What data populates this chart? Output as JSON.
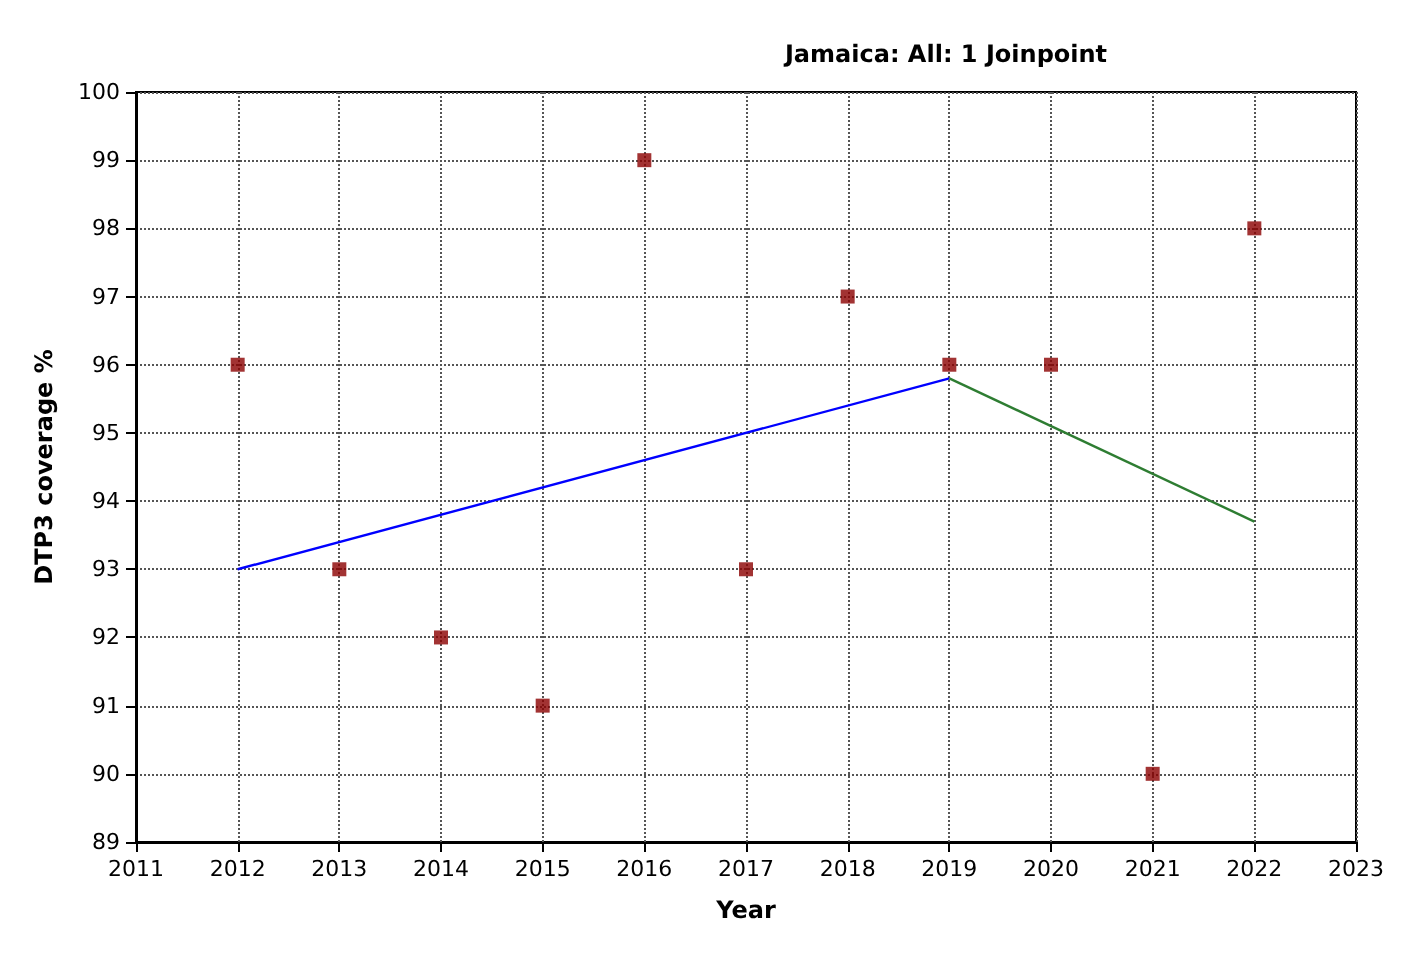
{
  "chart_data": {
    "type": "scatter",
    "title": "Jamaica: All: 1 Joinpoint",
    "xlabel": "Year",
    "ylabel": "DTP3 coverage %",
    "xlim": [
      2011,
      2023
    ],
    "xticks": [
      2011,
      2012,
      2013,
      2014,
      2015,
      2016,
      2017,
      2018,
      2019,
      2020,
      2021,
      2022,
      2023
    ],
    "ylim": [
      89,
      100
    ],
    "yticks": [
      89,
      90,
      91,
      92,
      93,
      94,
      95,
      96,
      97,
      98,
      99,
      100
    ],
    "grid": true,
    "marker": "square",
    "series": [
      {
        "color": "#8b0000",
        "x": [
          2012,
          2013,
          2014,
          2015,
          2016,
          2017,
          2018,
          2019,
          2020,
          2021,
          2022
        ],
        "values": [
          96,
          93,
          92,
          91,
          99,
          93,
          97,
          96,
          96,
          90,
          98
        ]
      },
      {
        "type": "line",
        "color": "#0000ff",
        "marker": "none",
        "line_style": "solid",
        "x": [
          2012,
          2019
        ],
        "values": [
          93.0,
          95.8
        ]
      },
      {
        "type": "line",
        "color": "#2e7d32",
        "marker": "none",
        "line_style": "solid",
        "x": [
          2019,
          2022
        ],
        "values": [
          95.8,
          93.7
        ]
      }
    ]
  }
}
